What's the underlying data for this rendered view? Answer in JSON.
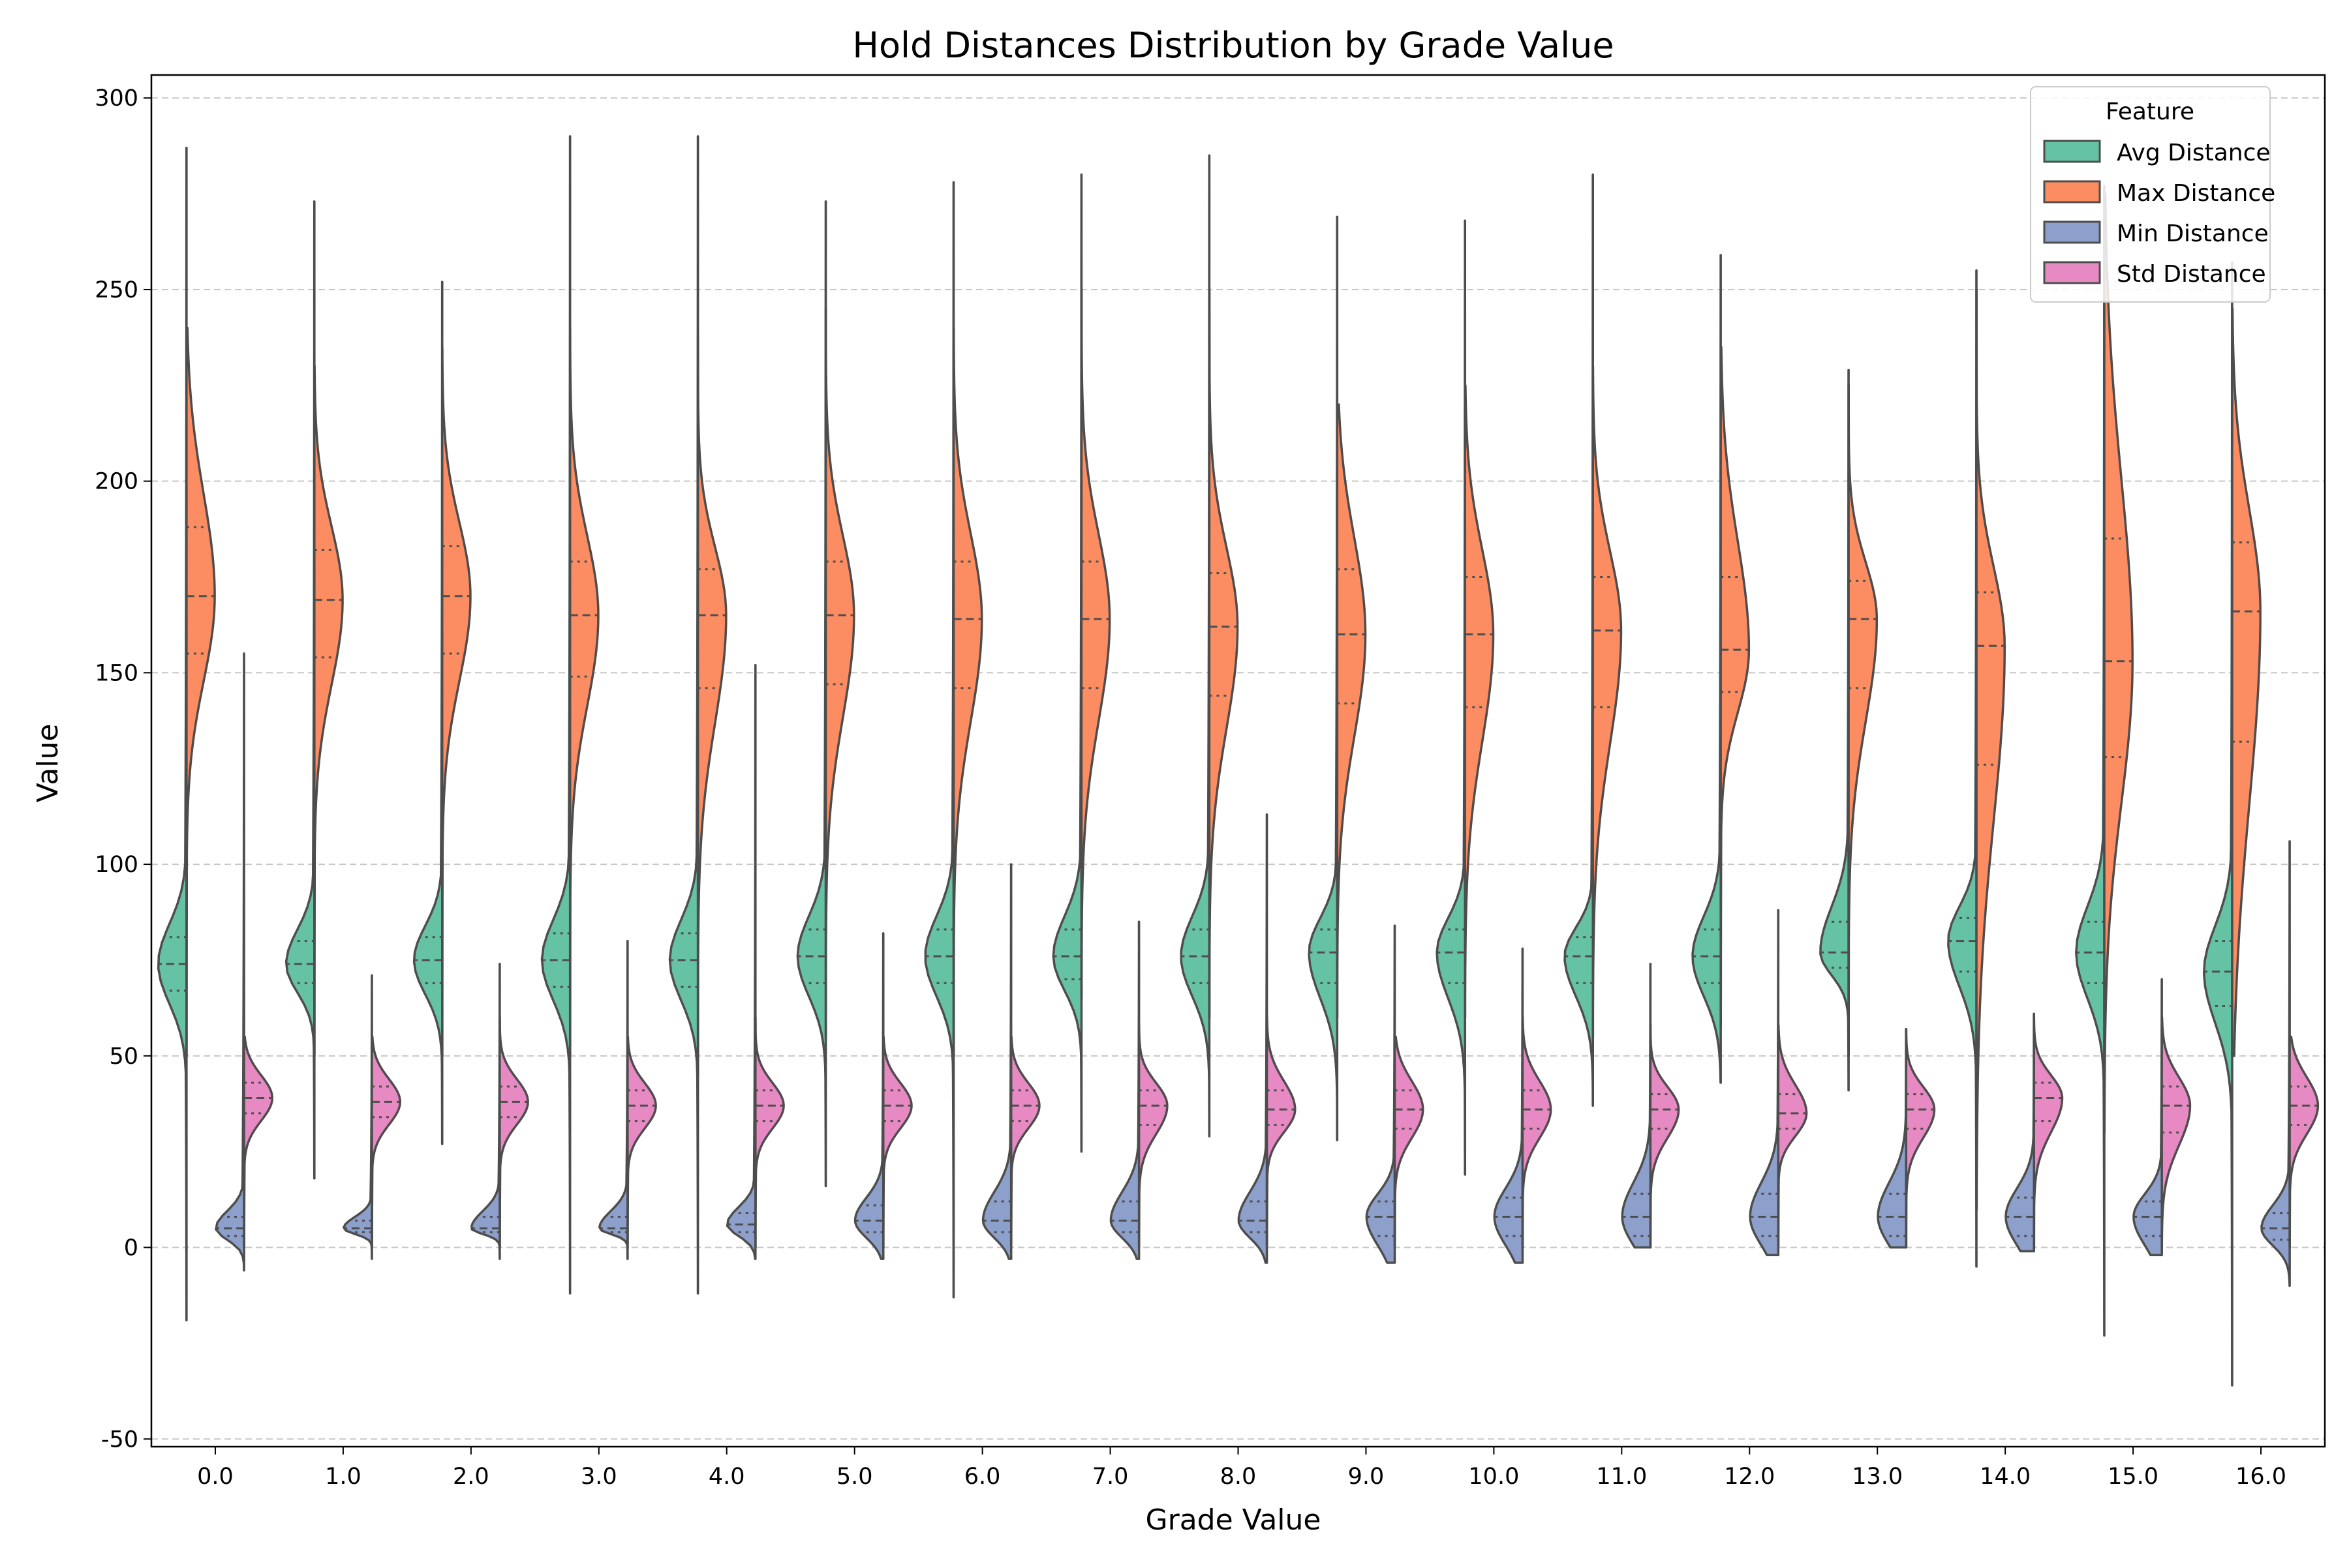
{
  "chart_data": {
    "type": "violin",
    "title": "Hold Distances Distribution by Grade Value",
    "xlabel": "Grade Value",
    "ylabel": "Value",
    "ylim": [
      -52,
      306
    ],
    "yticks": [
      -50,
      0,
      50,
      100,
      150,
      200,
      250,
      300
    ],
    "grid": "horizontal dashed",
    "legend": {
      "title": "Feature",
      "placement": "top-right"
    },
    "categories": [
      "0.0",
      "1.0",
      "2.0",
      "3.0",
      "4.0",
      "5.0",
      "6.0",
      "7.0",
      "8.0",
      "9.0",
      "10.0",
      "11.0",
      "12.0",
      "13.0",
      "14.0",
      "15.0",
      "16.0"
    ],
    "series": [
      {
        "name": "Avg Distance",
        "color": "#66c2a5",
        "min": [
          -19,
          18,
          27,
          -12,
          -12,
          16,
          -13,
          25,
          29,
          28,
          19,
          37,
          43,
          41,
          -5,
          -23,
          -36
        ],
        "q1": [
          67,
          69,
          69,
          68,
          68,
          69,
          69,
          70,
          69,
          69,
          69,
          69,
          69,
          73,
          72,
          69,
          63
        ],
        "median": [
          74,
          74,
          75,
          75,
          75,
          76,
          76,
          76,
          76,
          77,
          77,
          76,
          76,
          77,
          80,
          77,
          72
        ],
        "q3": [
          81,
          80,
          81,
          82,
          82,
          83,
          83,
          83,
          83,
          83,
          83,
          81,
          83,
          85,
          86,
          85,
          80
        ],
        "max": [
          287,
          273,
          252,
          290,
          290,
          273,
          278,
          280,
          285,
          269,
          268,
          280,
          259,
          229,
          255,
          277,
          257
        ]
      },
      {
        "name": "Max Distance",
        "color": "#fc8d62",
        "min": [
          50,
          50,
          50,
          50,
          45,
          55,
          50,
          65,
          60,
          60,
          60,
          55,
          58,
          50,
          10,
          30,
          50
        ],
        "q1": [
          155,
          154,
          155,
          149,
          146,
          147,
          146,
          146,
          144,
          142,
          141,
          141,
          145,
          146,
          126,
          128,
          132
        ],
        "median": [
          170,
          169,
          170,
          165,
          165,
          165,
          164,
          164,
          162,
          160,
          160,
          161,
          156,
          164,
          157,
          153,
          166
        ],
        "q3": [
          188,
          182,
          183,
          179,
          177,
          179,
          179,
          179,
          176,
          177,
          175,
          175,
          175,
          174,
          171,
          185,
          184
        ],
        "max": [
          240,
          230,
          235,
          240,
          238,
          245,
          240,
          250,
          250,
          220,
          225,
          230,
          235,
          225,
          250,
          275,
          245
        ]
      },
      {
        "name": "Min Distance",
        "color": "#8da0cb",
        "min": [
          -6,
          -3,
          -3,
          -3,
          -3,
          -3,
          -3,
          -3,
          -4,
          -4,
          -4,
          0,
          -2,
          0,
          -1,
          -2,
          -10
        ],
        "q1": [
          3,
          4,
          4,
          4,
          4,
          4,
          4,
          4,
          4,
          3,
          3,
          3,
          3,
          3,
          3,
          3,
          2
        ],
        "median": [
          5,
          5,
          5,
          5,
          6,
          7,
          7,
          7,
          7,
          8,
          8,
          8,
          8,
          8,
          8,
          8,
          5
        ],
        "q3": [
          8,
          7,
          8,
          8,
          9,
          11,
          12,
          12,
          12,
          12,
          13,
          14,
          14,
          14,
          13,
          12,
          9
        ],
        "max": [
          155,
          71,
          74,
          80,
          152,
          82,
          100,
          85,
          113,
          84,
          78,
          74,
          88,
          57,
          61,
          70,
          106
        ]
      },
      {
        "name": "Std Distance",
        "color": "#e78ac3",
        "min": [
          0,
          0,
          0,
          0,
          0,
          0,
          0,
          0,
          0,
          0,
          0,
          0,
          0,
          0,
          0,
          0,
          0
        ],
        "q1": [
          35,
          34,
          34,
          33,
          33,
          33,
          33,
          32,
          32,
          31,
          31,
          31,
          31,
          31,
          33,
          30,
          32
        ],
        "median": [
          39,
          38,
          38,
          37,
          37,
          37,
          37,
          37,
          36,
          36,
          36,
          36,
          35,
          36,
          39,
          37,
          37
        ],
        "q3": [
          43,
          42,
          42,
          41,
          41,
          41,
          41,
          41,
          41,
          41,
          41,
          40,
          40,
          40,
          43,
          42,
          42
        ],
        "max": [
          55,
          55,
          60,
          55,
          60,
          55,
          55,
          58,
          60,
          55,
          60,
          58,
          58,
          57,
          60,
          60,
          55
        ]
      }
    ]
  }
}
